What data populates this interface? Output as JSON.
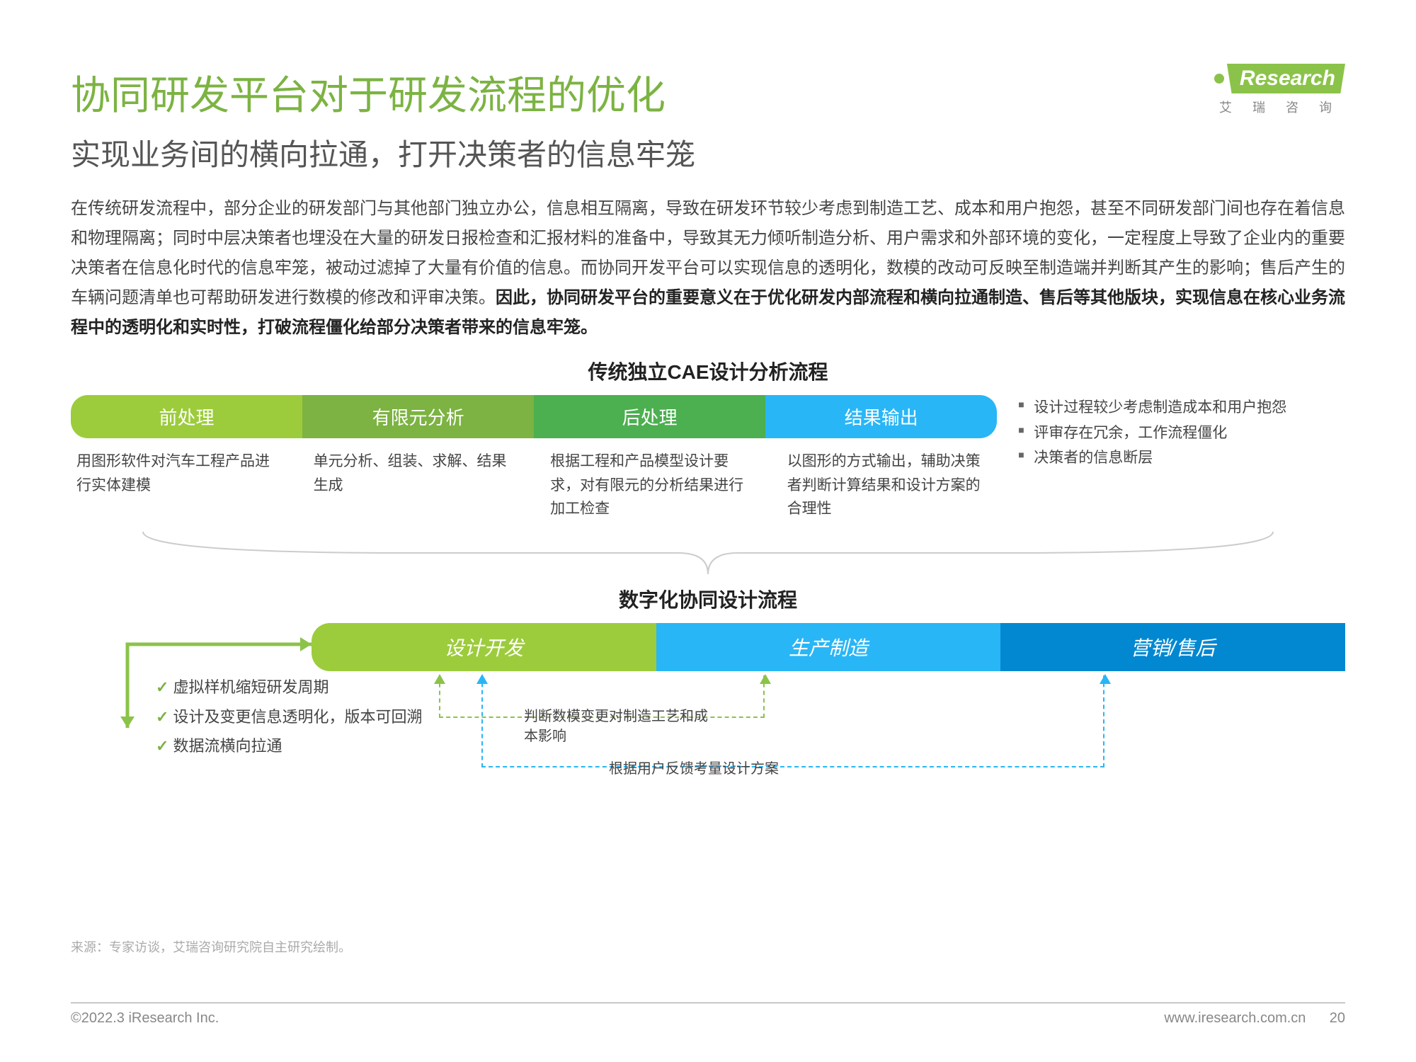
{
  "logo": {
    "brand": "Research",
    "sub": "艾 瑞 咨 询"
  },
  "title": "协同研发平台对于研发流程的优化",
  "subtitle": "实现业务间的横向拉通，打开决策者的信息牢笼",
  "body_p1": "在传统研发流程中，部分企业的研发部门与其他部门独立办公，信息相互隔离，导致在研发环节较少考虑到制造工艺、成本和用户抱怨，甚至不同研发部门间也存在着信息和物理隔离；同时中层决策者也埋没在大量的研发日报检查和汇报材料的准备中，导致其无力倾听制造分析、用户需求和外部环境的变化，一定程度上导致了企业内的重要决策者在信息化时代的信息牢笼，被动过滤掉了大量有价值的信息。而协同开发平台可以实现信息的透明化，数模的改动可反映至制造端并判断其产生的影响；售后产生的车辆问题清单也可帮助研发进行数模的修改和评审决策。",
  "body_bold": "因此，协同研发平台的重要意义在于优化研发内部流程和横向拉通制造、售后等其他版块，实现信息在核心业务流程中的透明化和实时性，打破流程僵化给部分决策者带来的信息牢笼。",
  "flow1": {
    "title": "传统独立CAE设计分析流程",
    "pills": [
      {
        "label": "前处理",
        "color": "#9ccc3c",
        "desc": "用图形软件对汽车工程产品进行实体建模"
      },
      {
        "label": "有限元分析",
        "color": "#7cb342",
        "desc": "单元分析、组装、求解、结果生成"
      },
      {
        "label": "后处理",
        "color": "#4caf50",
        "desc": "根据工程和产品模型设计要求，对有限元的分析结果进行加工检查"
      },
      {
        "label": "结果输出",
        "color": "#29b6f6",
        "desc": "以图形的方式输出，辅助决策者判断计算结果和设计方案的合理性"
      }
    ],
    "side": [
      "设计过程较少考虑制造成本和用户抱怨",
      "评审存在冗余，工作流程僵化",
      "决策者的信息断层"
    ]
  },
  "flow2": {
    "title": "数字化协同设计流程",
    "pills": [
      {
        "label": "设计开发",
        "color": "#9ccc3c"
      },
      {
        "label": "生产制造",
        "color": "#29b6f6"
      },
      {
        "label": "营销/售后",
        "color": "#0288d1"
      }
    ],
    "feedback1": "判断数模变更对制造工艺和成本影响",
    "feedback2": "根据用户反馈考量设计方案",
    "checks": [
      "虚拟样机缩短研发周期",
      "设计及变更信息透明化，版本可回溯",
      "数据流横向拉通"
    ],
    "dash_colors": {
      "green": "#8bc34a",
      "blue": "#29b6f6"
    }
  },
  "source": "来源：专家访谈，艾瑞咨询研究院自主研究绘制。",
  "footer": {
    "copyright": "©2022.3 iResearch Inc.",
    "url": "www.iresearch.com.cn",
    "page": "20"
  }
}
